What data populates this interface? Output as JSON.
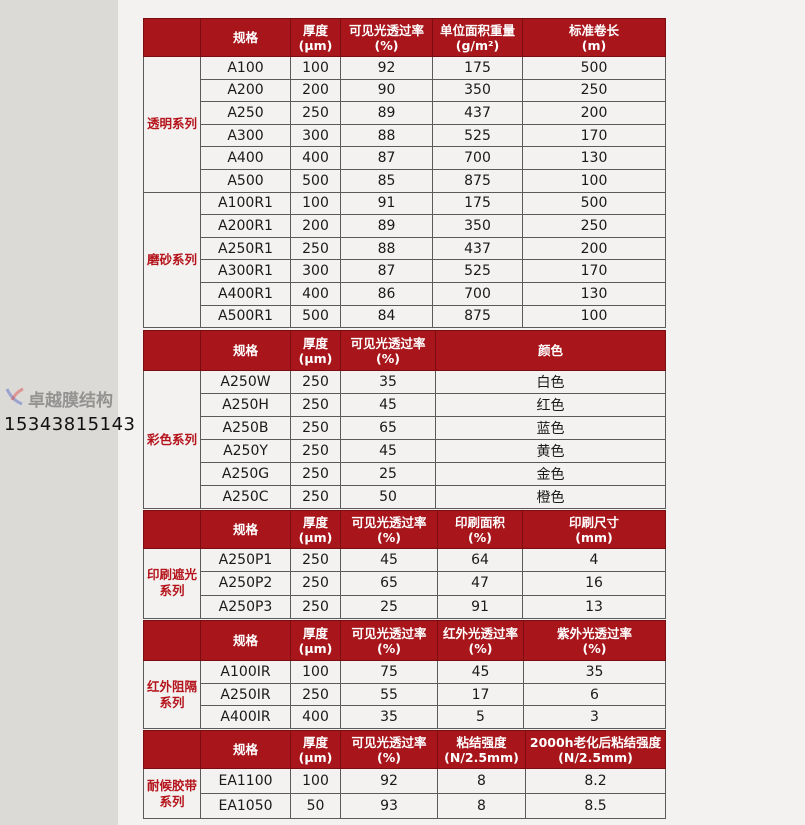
{
  "sections": [
    {
      "id": "main",
      "headers": [
        "",
        "规格",
        "厚度\n(μm)",
        "可见光透过率\n(%)",
        "单位面积重量\n(g/m²)",
        "标准卷长\n(m)"
      ],
      "groups": [
        {
          "label": "透明系列",
          "rows": [
            [
              "A100",
              "100",
              "92",
              "175",
              "500"
            ],
            [
              "A200",
              "200",
              "90",
              "350",
              "250"
            ],
            [
              "A250",
              "250",
              "89",
              "437",
              "200"
            ],
            [
              "A300",
              "300",
              "88",
              "525",
              "170"
            ],
            [
              "A400",
              "400",
              "87",
              "700",
              "130"
            ],
            [
              "A500",
              "500",
              "85",
              "875",
              "100"
            ]
          ]
        },
        {
          "label": "磨砂系列",
          "rows": [
            [
              "A100R1",
              "100",
              "91",
              "175",
              "500"
            ],
            [
              "A200R1",
              "200",
              "89",
              "350",
              "250"
            ],
            [
              "A250R1",
              "250",
              "88",
              "437",
              "200"
            ],
            [
              "A300R1",
              "300",
              "87",
              "525",
              "170"
            ],
            [
              "A400R1",
              "400",
              "86",
              "700",
              "130"
            ],
            [
              "A500R1",
              "500",
              "84",
              "875",
              "100"
            ]
          ]
        }
      ]
    },
    {
      "id": "color",
      "headers": [
        "",
        "规格",
        "厚度\n(μm)",
        "可见光透过率\n(%)",
        "颜色"
      ],
      "groups": [
        {
          "label": "彩色系列",
          "rows": [
            [
              "A250W",
              "250",
              "35",
              "白色"
            ],
            [
              "A250H",
              "250",
              "45",
              "红色"
            ],
            [
              "A250B",
              "250",
              "65",
              "蓝色"
            ],
            [
              "A250Y",
              "250",
              "45",
              "黄色"
            ],
            [
              "A250G",
              "250",
              "25",
              "金色"
            ],
            [
              "A250C",
              "250",
              "50",
              "橙色"
            ]
          ]
        }
      ]
    },
    {
      "id": "print",
      "headers": [
        "",
        "规格",
        "厚度\n(μm)",
        "可见光透过率\n(%)",
        "印刷面积\n(%)",
        "印刷尺寸\n(mm)"
      ],
      "groups": [
        {
          "label": "印刷遮光\n系列",
          "rows": [
            [
              "A250P1",
              "250",
              "45",
              "64",
              "4"
            ],
            [
              "A250P2",
              "250",
              "65",
              "47",
              "16"
            ],
            [
              "A250P3",
              "250",
              "25",
              "91",
              "13"
            ]
          ]
        }
      ]
    },
    {
      "id": "ir",
      "headers": [
        "",
        "规格",
        "厚度\n(μm)",
        "可见光透过率\n(%)",
        "红外光透过率\n(%)",
        "紫外光透过率\n(%)"
      ],
      "groups": [
        {
          "label": "红外阻隔\n系列",
          "rows": [
            [
              "A100IR",
              "100",
              "75",
              "45",
              "35"
            ],
            [
              "A250IR",
              "250",
              "55",
              "17",
              "6"
            ],
            [
              "A400IR",
              "400",
              "35",
              "5",
              "3"
            ]
          ]
        }
      ]
    },
    {
      "id": "tape",
      "headers": [
        "",
        "规格",
        "厚度\n(μm)",
        "可见光透过率\n(%)",
        "粘结强度\n(N/2.5mm)",
        "2000h老化后粘结强度\n(N/2.5mm)"
      ],
      "groups": [
        {
          "label": "耐候胶带\n系列",
          "rows": [
            [
              "EA1100",
              "100",
              "92",
              "8",
              "8.2"
            ],
            [
              "EA1050",
              "50",
              "93",
              "8",
              "8.5"
            ]
          ]
        }
      ]
    }
  ],
  "watermark": {
    "brand": "卓越膜结构",
    "phone": "15343815143"
  },
  "colors": {
    "header_bg": "#a8151b",
    "group_label": "#b5141c"
  }
}
